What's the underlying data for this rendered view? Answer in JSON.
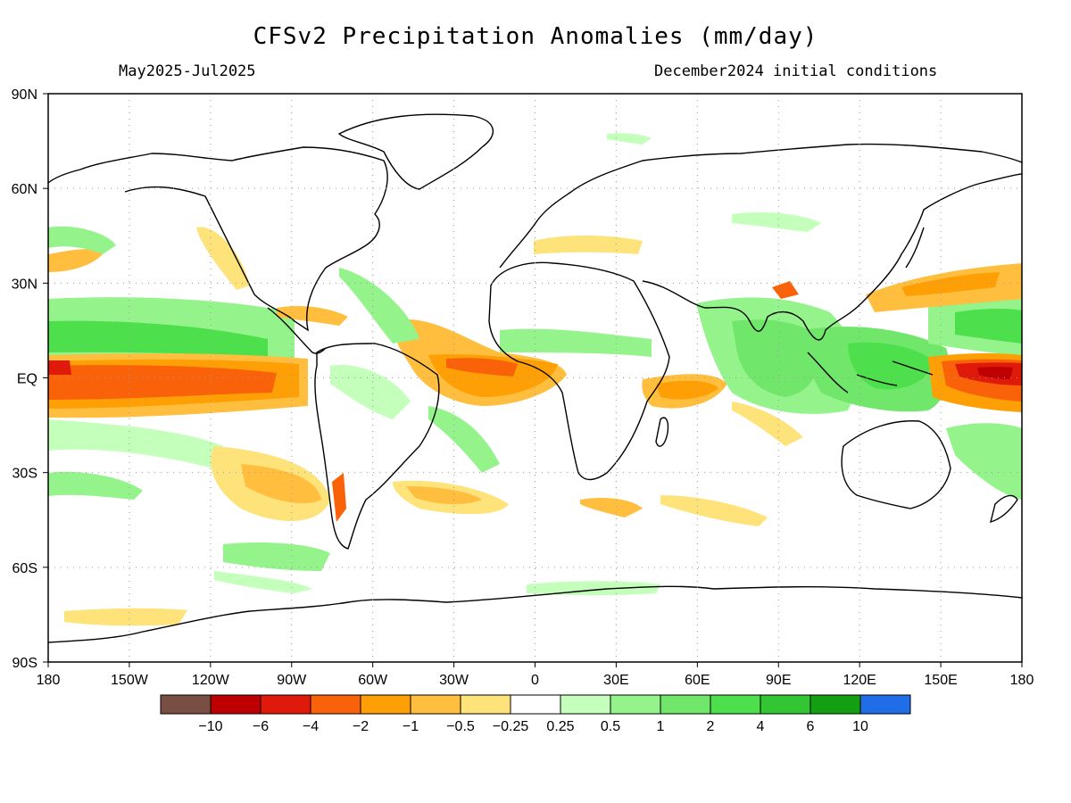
{
  "title": "CFSv2 Precipitation Anomalies (mm/day)",
  "subtitle_left": "May2025-Jul2025",
  "subtitle_right": "December2024 initial conditions",
  "lat_ticks": [
    {
      "lat": 90,
      "label": "90N"
    },
    {
      "lat": 60,
      "label": "60N"
    },
    {
      "lat": 30,
      "label": "30N"
    },
    {
      "lat": 0,
      "label": "EQ"
    },
    {
      "lat": -30,
      "label": "30S"
    },
    {
      "lat": -60,
      "label": "60S"
    },
    {
      "lat": -90,
      "label": "90S"
    }
  ],
  "lon_ticks": [
    {
      "lon": 0,
      "label": "180"
    },
    {
      "lon": 30,
      "label": "150W"
    },
    {
      "lon": 60,
      "label": "120W"
    },
    {
      "lon": 90,
      "label": "90W"
    },
    {
      "lon": 120,
      "label": "60W"
    },
    {
      "lon": 150,
      "label": "30W"
    },
    {
      "lon": 180,
      "label": "0"
    },
    {
      "lon": 210,
      "label": "30E"
    },
    {
      "lon": 240,
      "label": "60E"
    },
    {
      "lon": 270,
      "label": "90E"
    },
    {
      "lon": 300,
      "label": "120E"
    },
    {
      "lon": 330,
      "label": "150E"
    },
    {
      "lon": 360,
      "label": "180"
    }
  ],
  "colorbar": {
    "colors": [
      "#7a4f43",
      "#bf0000",
      "#e01a0a",
      "#f96208",
      "#fe9f05",
      "#ffbe3d",
      "#fee27a",
      "#ffffff",
      "#c4ffbc",
      "#94f38b",
      "#70e66a",
      "#4ee04c",
      "#33c633",
      "#12a012",
      "#1f6ee8"
    ],
    "labels": [
      "-10",
      "-6",
      "-4",
      "-2",
      "-1",
      "-0.5",
      "-0.25",
      "0.25",
      "0.5",
      "1",
      "2",
      "4",
      "6",
      "10"
    ]
  },
  "chart_data": {
    "type": "heatmap",
    "title": "CFSv2 Precipitation Anomalies (mm/day)",
    "period": "May2025-Jul2025",
    "initial_conditions": "December2024 initial conditions",
    "x_axis": {
      "range": [
        "180",
        "180"
      ],
      "ticks": [
        "180",
        "150W",
        "120W",
        "90W",
        "60W",
        "30W",
        "0",
        "30E",
        "60E",
        "90E",
        "120E",
        "150E",
        "180"
      ]
    },
    "y_axis": {
      "range": [
        "90S",
        "90N"
      ],
      "ticks": [
        "90N",
        "60N",
        "30N",
        "EQ",
        "30S",
        "60S",
        "90S"
      ]
    },
    "levels": [
      -10,
      -6,
      -4,
      -2,
      -1,
      -0.5,
      -0.25,
      0.25,
      0.5,
      1,
      2,
      4,
      6,
      10
    ],
    "grid": true,
    "anomaly_regions": [
      {
        "lon": [
          180,
          280
        ],
        "lat": [
          8,
          -8
        ],
        "value": -4
      },
      {
        "lon": [
          155,
          210
        ],
        "lat": [
          7,
          -5
        ],
        "value": -2
      },
      {
        "lon": [
          140,
          175
        ],
        "lat": [
          5,
          -2
        ],
        "value": -4
      },
      {
        "lon": [
          150,
          210
        ],
        "lat": [
          20,
          10
        ],
        "value": -1
      },
      {
        "lon": [
          225,
          255
        ],
        "lat": [
          -2,
          -12
        ],
        "value": -1
      },
      {
        "lon": [
          110,
          140
        ],
        "lat": [
          -20,
          -35
        ],
        "value": -1
      },
      {
        "lon": [
          130,
          165
        ],
        "lat": [
          -35,
          -45
        ],
        "value": -1
      },
      {
        "lon": [
          110,
          150
        ],
        "lat": [
          3,
          -13
        ],
        "value": -2
      },
      {
        "lon": [
          160,
          175
        ],
        "lat": [
          32,
          14
        ],
        "value": 2
      },
      {
        "lon": [
          180,
          360
        ],
        "lat": [
          20,
          10
        ],
        "value": 2
      },
      {
        "lon": [
          270,
          360
        ],
        "lat": [
          15,
          -15
        ],
        "value": 2
      },
      {
        "lon": [
          250,
          290
        ],
        "lat": [
          25,
          5
        ],
        "value": 2
      },
      {
        "lon": [
          320,
          360
        ],
        "lat": [
          32,
          26
        ],
        "value": -1
      },
      {
        "lon": [
          272,
          275
        ],
        "lat": [
          28,
          24
        ],
        "value": -4
      },
      {
        "lon": [
          225,
          275
        ],
        "lat": [
          -40,
          -48
        ],
        "value": -0.5
      }
    ]
  }
}
